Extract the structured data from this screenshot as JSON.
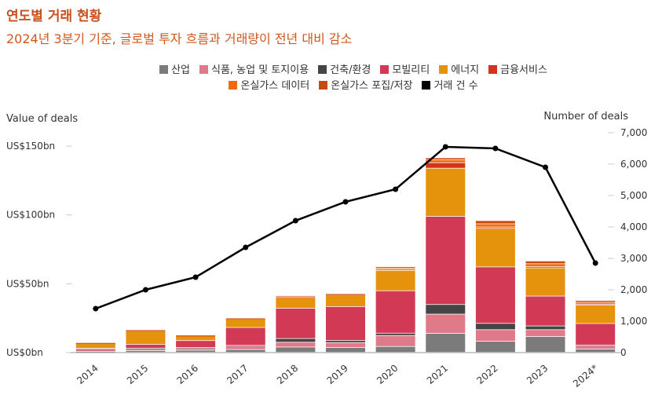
{
  "title": "연도별 거래 현황",
  "subtitle": "2024년 3분기 기준, 글로벌 투자 흐름과 거래량이 전년 대비 감소",
  "chart_data": {
    "type": "bar",
    "categories": [
      "2014",
      "2015",
      "2016",
      "2017",
      "2018",
      "2019",
      "2020",
      "2021",
      "2022",
      "2023",
      "2024*"
    ],
    "ylabel": "Value of deals",
    "y2label": "Number of deals",
    "ylim": [
      0,
      150
    ],
    "y2lim": [
      0,
      7000
    ],
    "yticks": [
      "US$0bn",
      "US$50bn",
      "US$100bn",
      "US$150bn"
    ],
    "y2ticks": [
      "0",
      "1,000",
      "2,000",
      "3,000",
      "4,000",
      "5,000",
      "6,000",
      "7,000"
    ],
    "legend_position": "top",
    "series": [
      {
        "name": "산업",
        "color": "#7b7b7b",
        "values": [
          0.5,
          1.2,
          1.5,
          2,
          3.8,
          3.5,
          4.2,
          13.7,
          8,
          11.4,
          2.3
        ]
      },
      {
        "name": "식품, 농업 및 토지이용",
        "color": "#df7a8b",
        "values": [
          1.5,
          1.5,
          1.5,
          2.5,
          3.5,
          3.5,
          8,
          14,
          8.4,
          5,
          2.5
        ]
      },
      {
        "name": "건축/환경",
        "color": "#454545",
        "values": [
          0.3,
          0.3,
          0.5,
          0.5,
          2.7,
          1.5,
          1.7,
          7,
          4.6,
          2.7,
          0.5
        ]
      },
      {
        "name": "모빌리티",
        "color": "#d13954",
        "values": [
          0.7,
          2.8,
          5,
          13,
          22,
          24.7,
          30.8,
          64,
          41,
          21.7,
          15.6
        ]
      },
      {
        "name": "에너지",
        "color": "#e5920c",
        "values": [
          3.5,
          10,
          3.5,
          6,
          7.6,
          8.4,
          14.8,
          35,
          28,
          20.5,
          13.3
        ]
      },
      {
        "name": "금융서비스",
        "color": "#d4321f",
        "values": [
          0.1,
          0.1,
          0.1,
          0.2,
          0.4,
          0.3,
          0.7,
          4,
          1,
          1,
          0.8
        ]
      },
      {
        "name": "온실가스 데이터",
        "color": "#f06a12",
        "values": [
          0.2,
          0.2,
          0.2,
          0.4,
          0.6,
          0.4,
          1,
          2,
          2.3,
          2,
          1.3
        ]
      },
      {
        "name": "온실가스 포집/저장",
        "color": "#c44c12",
        "values": [
          0.2,
          0.2,
          0.2,
          0.4,
          0.5,
          0.3,
          1,
          1.5,
          2.3,
          2,
          1.3
        ]
      },
      {
        "name": "거래 건 수",
        "color": "#000000",
        "type": "line",
        "axis": "right",
        "values": [
          1400,
          2000,
          2400,
          3350,
          4200,
          4800,
          5200,
          6550,
          6500,
          5900,
          2850
        ]
      }
    ]
  }
}
